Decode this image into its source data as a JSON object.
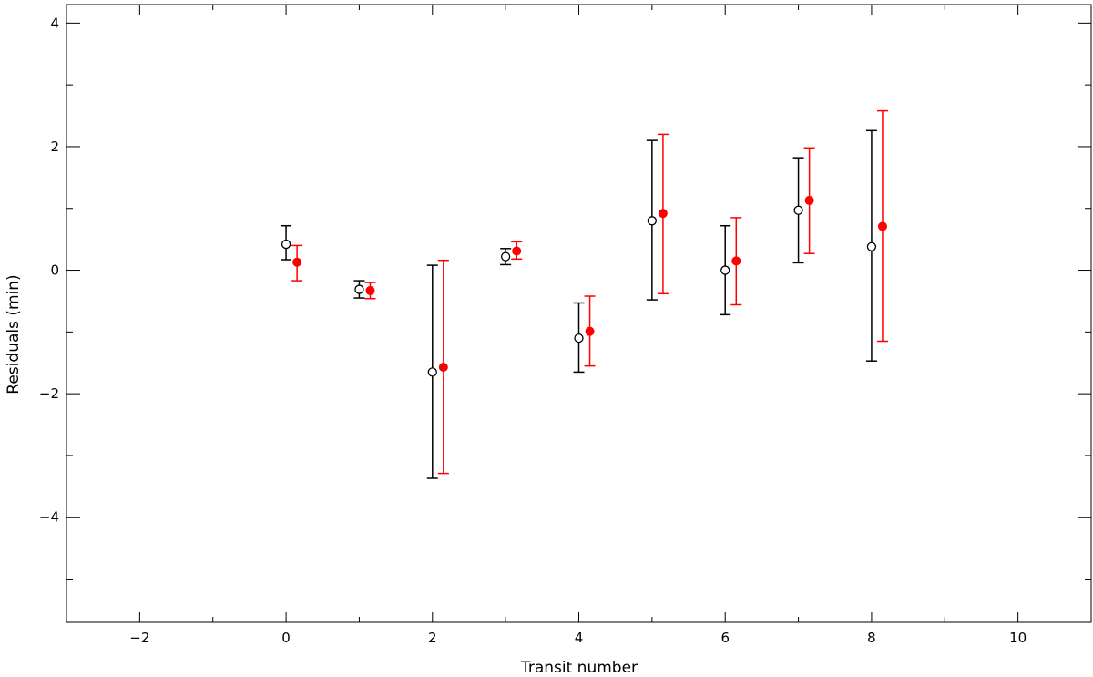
{
  "chart_data": {
    "type": "scatter",
    "xlabel": "Transit number",
    "ylabel": "Residuals (min)",
    "xlim": [
      -3,
      11
    ],
    "ylim": [
      -5.7,
      4.3
    ],
    "x_ticks": [
      -2,
      0,
      2,
      4,
      6,
      8,
      10
    ],
    "y_ticks": [
      -4,
      -2,
      0,
      2,
      4
    ],
    "grid": false,
    "series": [
      {
        "color": "#000000",
        "marker": "open-circle",
        "points": [
          {
            "x": 0,
            "y": 0.42,
            "err_low": 0.25,
            "err_high": 0.3
          },
          {
            "x": 1,
            "y": -0.31,
            "err_low": 0.14,
            "err_high": 0.14
          },
          {
            "x": 2,
            "y": -1.65,
            "err_low": 1.72,
            "err_high": 1.73
          },
          {
            "x": 3,
            "y": 0.22,
            "err_low": 0.13,
            "err_high": 0.13
          },
          {
            "x": 4,
            "y": -1.1,
            "err_low": 0.55,
            "err_high": 0.57
          },
          {
            "x": 5,
            "y": 0.8,
            "err_low": 1.28,
            "err_high": 1.3
          },
          {
            "x": 6,
            "y": 0.0,
            "err_low": 0.72,
            "err_high": 0.72
          },
          {
            "x": 7,
            "y": 0.97,
            "err_low": 0.85,
            "err_high": 0.85
          },
          {
            "x": 8,
            "y": 0.38,
            "err_low": 1.85,
            "err_high": 1.88
          }
        ]
      },
      {
        "color": "#ff0000",
        "marker": "filled-circle",
        "points": [
          {
            "x": 0.15,
            "y": 0.13,
            "err_low": 0.3,
            "err_high": 0.27
          },
          {
            "x": 1.15,
            "y": -0.33,
            "err_low": 0.13,
            "err_high": 0.13
          },
          {
            "x": 2.15,
            "y": -1.57,
            "err_low": 1.72,
            "err_high": 1.73
          },
          {
            "x": 3.15,
            "y": 0.31,
            "err_low": 0.13,
            "err_high": 0.15
          },
          {
            "x": 4.15,
            "y": -0.99,
            "err_low": 0.56,
            "err_high": 0.57
          },
          {
            "x": 5.15,
            "y": 0.92,
            "err_low": 1.3,
            "err_high": 1.28
          },
          {
            "x": 6.15,
            "y": 0.15,
            "err_low": 0.71,
            "err_high": 0.7
          },
          {
            "x": 7.15,
            "y": 1.13,
            "err_low": 0.86,
            "err_high": 0.85
          },
          {
            "x": 8.15,
            "y": 0.71,
            "err_low": 1.86,
            "err_high": 1.87
          }
        ]
      }
    ]
  }
}
